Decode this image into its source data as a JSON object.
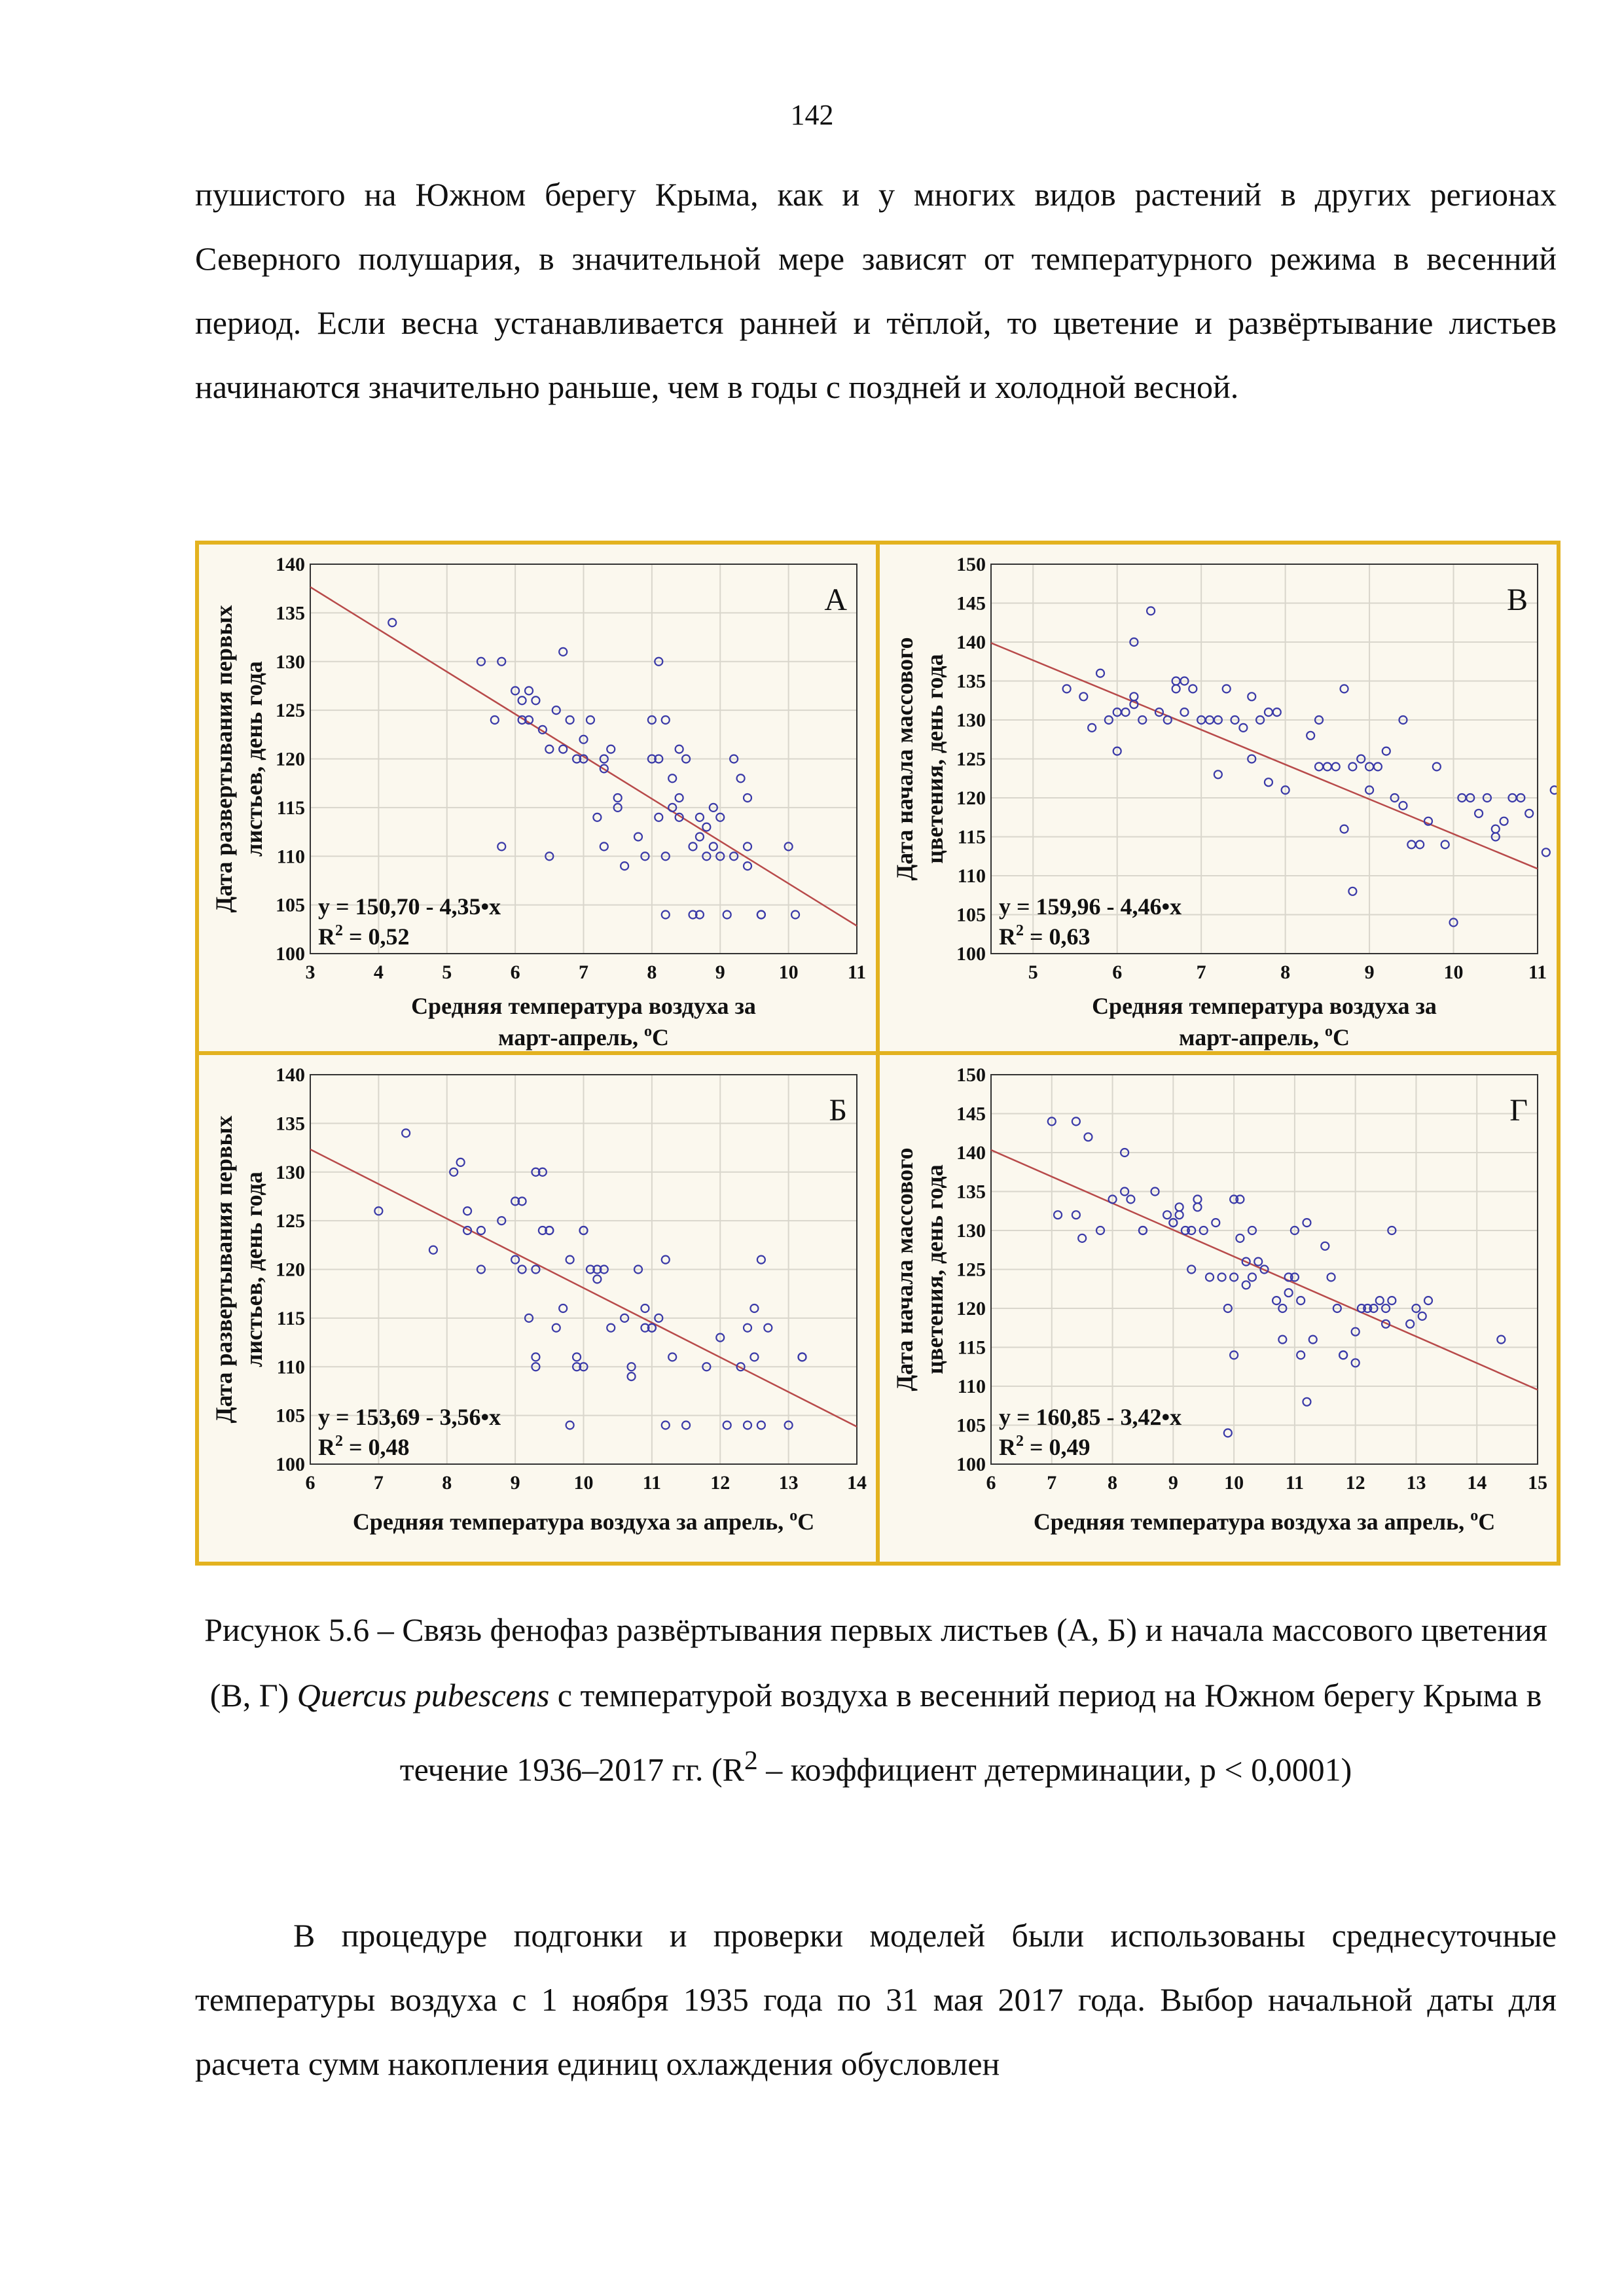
{
  "page_number": "142",
  "paragraph_top": "пушистого на Южном берегу Крыма, как и у многих видов растений в других регионах Северного полушария, в значительной мере зависят от температурного режима в весенний период. Если весна устанавливается ранней и тёплой, то цветение и развёртывание листьев начинаются значительно раньше, чем в годы с поздней и холодной весной.",
  "caption": {
    "part1": "Рисунок 5.6 – Связь фенофаз развёртывания первых листьев (А, Б) и начала массового цветения (В, Г) ",
    "species": "Quercus pubescens",
    "part2": " с температурой воздуха в весенний период на Южном берегу Крыма в течение 1936–2017 гг. (R",
    "sup": "2",
    "part3": " – коэффициент детерминации, p < 0,0001)"
  },
  "paragraph_bottom": "В процедуре подгонки и проверки моделей были использованы среднесуточные температуры воздуха с 1 ноября 1935 года по 31 мая 2017 года. Выбор начальной даты для расчета сумм накопления единиц охлаждения обусловлен",
  "chart_data": [
    {
      "id": "A",
      "type": "scatter",
      "panel_label": "А",
      "xlabel_line1": "Средняя температура воздуха за",
      "xlabel_line2": "март-апрель, ",
      "xlabel_unit_sup": "o",
      "xlabel_unit": "C",
      "ylabel_line1": "Дата развертывания первых",
      "ylabel_line2": "листьев, день года",
      "xlim": [
        3,
        11
      ],
      "ylim": [
        100,
        140
      ],
      "xticks": [
        3,
        4,
        5,
        6,
        7,
        8,
        9,
        10,
        11
      ],
      "yticks": [
        100,
        105,
        110,
        115,
        120,
        125,
        130,
        135,
        140
      ],
      "equation": "y = 150,70 - 4,35•x",
      "r2_label": "R",
      "r2_sup": "2",
      "r2_value": " = 0,52",
      "regression": {
        "intercept": 150.7,
        "slope": -4.35
      },
      "points": [
        [
          4.2,
          134
        ],
        [
          5.5,
          130
        ],
        [
          5.7,
          124
        ],
        [
          5.8,
          111
        ],
        [
          5.8,
          130
        ],
        [
          6.0,
          127
        ],
        [
          6.1,
          124
        ],
        [
          6.1,
          126
        ],
        [
          6.2,
          127
        ],
        [
          6.2,
          124
        ],
        [
          6.3,
          126
        ],
        [
          6.4,
          123
        ],
        [
          6.5,
          121
        ],
        [
          6.5,
          110
        ],
        [
          6.6,
          125
        ],
        [
          6.7,
          131
        ],
        [
          6.7,
          121
        ],
        [
          6.8,
          124
        ],
        [
          6.9,
          120
        ],
        [
          7.0,
          122
        ],
        [
          7.0,
          120
        ],
        [
          7.1,
          124
        ],
        [
          7.2,
          114
        ],
        [
          7.3,
          111
        ],
        [
          7.3,
          119
        ],
        [
          7.3,
          120
        ],
        [
          7.4,
          121
        ],
        [
          7.5,
          116
        ],
        [
          7.5,
          115
        ],
        [
          7.6,
          109
        ],
        [
          7.8,
          112
        ],
        [
          7.9,
          110
        ],
        [
          8.0,
          124
        ],
        [
          8.0,
          120
        ],
        [
          8.1,
          114
        ],
        [
          8.1,
          130
        ],
        [
          8.1,
          120
        ],
        [
          8.2,
          124
        ],
        [
          8.2,
          110
        ],
        [
          8.2,
          104
        ],
        [
          8.3,
          115
        ],
        [
          8.3,
          118
        ],
        [
          8.4,
          116
        ],
        [
          8.4,
          121
        ],
        [
          8.4,
          114
        ],
        [
          8.5,
          120
        ],
        [
          8.6,
          111
        ],
        [
          8.6,
          104
        ],
        [
          8.7,
          104
        ],
        [
          8.7,
          114
        ],
        [
          8.7,
          112
        ],
        [
          8.8,
          110
        ],
        [
          8.8,
          113
        ],
        [
          8.9,
          111
        ],
        [
          8.9,
          115
        ],
        [
          9.0,
          114
        ],
        [
          9.0,
          110
        ],
        [
          9.1,
          104
        ],
        [
          9.2,
          110
        ],
        [
          9.2,
          120
        ],
        [
          9.3,
          118
        ],
        [
          9.4,
          109
        ],
        [
          9.4,
          116
        ],
        [
          9.4,
          111
        ],
        [
          9.6,
          104
        ],
        [
          9.6,
          104
        ],
        [
          10.0,
          111
        ],
        [
          10.1,
          104
        ]
      ]
    },
    {
      "id": "B",
      "type": "scatter",
      "panel_label": "В",
      "xlabel_line1": "Средняя температура воздуха за",
      "xlabel_line2": "март-апрель, ",
      "xlabel_unit_sup": "o",
      "xlabel_unit": "C",
      "ylabel_line1": "Дата начала массового",
      "ylabel_line2": "цветения, день года",
      "xlim": [
        4.5,
        11
      ],
      "ylim": [
        100,
        150
      ],
      "xticks": [
        5,
        6,
        7,
        8,
        9,
        10,
        11
      ],
      "yticks": [
        100,
        105,
        110,
        115,
        120,
        125,
        130,
        135,
        140,
        145,
        150
      ],
      "equation": "y = 159,96 - 4,46•x",
      "r2_label": "R",
      "r2_sup": "2",
      "r2_value": " = 0,63",
      "regression": {
        "intercept": 159.96,
        "slope": -4.46
      },
      "points": [
        [
          5.4,
          134
        ],
        [
          5.6,
          133
        ],
        [
          5.7,
          129
        ],
        [
          5.8,
          136
        ],
        [
          5.9,
          130
        ],
        [
          6.0,
          126
        ],
        [
          6.0,
          131
        ],
        [
          6.1,
          131
        ],
        [
          6.2,
          140
        ],
        [
          6.2,
          132
        ],
        [
          6.2,
          133
        ],
        [
          6.3,
          130
        ],
        [
          6.4,
          144
        ],
        [
          6.5,
          131
        ],
        [
          6.6,
          130
        ],
        [
          6.7,
          135
        ],
        [
          6.7,
          134
        ],
        [
          6.8,
          131
        ],
        [
          6.8,
          135
        ],
        [
          6.9,
          134
        ],
        [
          7.0,
          130
        ],
        [
          7.1,
          130
        ],
        [
          7.2,
          130
        ],
        [
          7.2,
          123
        ],
        [
          7.3,
          134
        ],
        [
          7.4,
          130
        ],
        [
          7.5,
          129
        ],
        [
          7.6,
          133
        ],
        [
          7.6,
          125
        ],
        [
          7.7,
          130
        ],
        [
          7.8,
          131
        ],
        [
          7.8,
          122
        ],
        [
          7.9,
          131
        ],
        [
          8.0,
          121
        ],
        [
          8.3,
          128
        ],
        [
          8.4,
          130
        ],
        [
          8.4,
          124
        ],
        [
          8.5,
          124
        ],
        [
          8.6,
          124
        ],
        [
          8.7,
          134
        ],
        [
          8.7,
          116
        ],
        [
          8.8,
          108
        ],
        [
          8.8,
          124
        ],
        [
          8.9,
          125
        ],
        [
          9.0,
          124
        ],
        [
          9.0,
          121
        ],
        [
          9.1,
          124
        ],
        [
          9.2,
          126
        ],
        [
          9.3,
          120
        ],
        [
          9.4,
          119
        ],
        [
          9.4,
          130
        ],
        [
          9.5,
          114
        ],
        [
          9.6,
          114
        ],
        [
          9.7,
          117
        ],
        [
          9.8,
          124
        ],
        [
          9.9,
          114
        ],
        [
          10.0,
          104
        ],
        [
          10.1,
          120
        ],
        [
          10.2,
          120
        ],
        [
          10.3,
          118
        ],
        [
          10.4,
          120
        ],
        [
          10.5,
          115
        ],
        [
          10.5,
          116
        ],
        [
          10.6,
          117
        ],
        [
          10.7,
          120
        ],
        [
          10.8,
          120
        ],
        [
          10.9,
          118
        ],
        [
          11.1,
          113
        ],
        [
          11.2,
          121
        ],
        [
          11.3,
          114
        ]
      ]
    },
    {
      "id": "C",
      "type": "scatter",
      "panel_label": "Б",
      "xlabel_line1": "Средняя температура воздуха за апрель, ",
      "xlabel_line2": "",
      "xlabel_unit_sup": "o",
      "xlabel_unit": "C",
      "ylabel_line1": "Дата развертывания первых",
      "ylabel_line2": "листьев, день года",
      "xlim": [
        6,
        14
      ],
      "ylim": [
        100,
        140
      ],
      "xticks": [
        6,
        7,
        8,
        9,
        10,
        11,
        12,
        13,
        14
      ],
      "yticks": [
        100,
        105,
        110,
        115,
        120,
        125,
        130,
        135,
        140
      ],
      "equation": "y = 153,69 - 3,56•x",
      "r2_label": "R",
      "r2_sup": "2",
      "r2_value": " = 0,48",
      "regression": {
        "intercept": 153.69,
        "slope": -3.56
      },
      "points": [
        [
          7.0,
          126
        ],
        [
          7.4,
          134
        ],
        [
          7.8,
          122
        ],
        [
          8.1,
          130
        ],
        [
          8.2,
          131
        ],
        [
          8.3,
          126
        ],
        [
          8.3,
          124
        ],
        [
          8.5,
          120
        ],
        [
          8.5,
          124
        ],
        [
          8.8,
          125
        ],
        [
          9.0,
          127
        ],
        [
          9.0,
          121
        ],
        [
          9.1,
          127
        ],
        [
          9.1,
          120
        ],
        [
          9.2,
          115
        ],
        [
          9.3,
          120
        ],
        [
          9.3,
          110
        ],
        [
          9.3,
          111
        ],
        [
          9.3,
          130
        ],
        [
          9.4,
          130
        ],
        [
          9.4,
          124
        ],
        [
          9.5,
          124
        ],
        [
          9.5,
          124
        ],
        [
          9.6,
          114
        ],
        [
          9.7,
          116
        ],
        [
          9.8,
          121
        ],
        [
          9.8,
          104
        ],
        [
          9.9,
          110
        ],
        [
          9.9,
          111
        ],
        [
          10.0,
          124
        ],
        [
          10.0,
          110
        ],
        [
          10.0,
          124
        ],
        [
          10.1,
          120
        ],
        [
          10.2,
          119
        ],
        [
          10.2,
          120
        ],
        [
          10.3,
          120
        ],
        [
          10.4,
          114
        ],
        [
          10.6,
          115
        ],
        [
          10.7,
          110
        ],
        [
          10.7,
          109
        ],
        [
          10.8,
          120
        ],
        [
          10.9,
          116
        ],
        [
          10.9,
          114
        ],
        [
          11.0,
          114
        ],
        [
          11.0,
          114
        ],
        [
          11.1,
          115
        ],
        [
          11.2,
          104
        ],
        [
          11.2,
          121
        ],
        [
          11.3,
          111
        ],
        [
          11.5,
          104
        ],
        [
          11.8,
          110
        ],
        [
          12.0,
          113
        ],
        [
          12.1,
          104
        ],
        [
          12.3,
          110
        ],
        [
          12.4,
          104
        ],
        [
          12.4,
          114
        ],
        [
          12.5,
          111
        ],
        [
          12.5,
          116
        ],
        [
          12.6,
          104
        ],
        [
          12.6,
          121
        ],
        [
          12.7,
          114
        ],
        [
          13.0,
          104
        ],
        [
          13.2,
          111
        ],
        [
          13.2,
          111
        ]
      ]
    },
    {
      "id": "D",
      "type": "scatter",
      "panel_label": "Г",
      "xlabel_line1": "Средняя температура воздуха за апрель, ",
      "xlabel_line2": "",
      "xlabel_unit_sup": "o",
      "xlabel_unit": "C",
      "ylabel_line1": "Дата начала массового",
      "ylabel_line2": "цветения, день года",
      "xlim": [
        6,
        15
      ],
      "ylim": [
        100,
        150
      ],
      "xticks": [
        6,
        7,
        8,
        9,
        10,
        11,
        12,
        13,
        14,
        15
      ],
      "yticks": [
        100,
        105,
        110,
        115,
        120,
        125,
        130,
        135,
        140,
        145,
        150
      ],
      "equation": "y = 160,85 - 3,42•x",
      "r2_label": "R",
      "r2_sup": "2",
      "r2_value": " = 0,49",
      "regression": {
        "intercept": 160.85,
        "slope": -3.42
      },
      "points": [
        [
          7.0,
          144
        ],
        [
          7.1,
          132
        ],
        [
          7.4,
          144
        ],
        [
          7.4,
          132
        ],
        [
          7.5,
          129
        ],
        [
          7.6,
          142
        ],
        [
          7.8,
          130
        ],
        [
          8.0,
          134
        ],
        [
          8.2,
          135
        ],
        [
          8.2,
          140
        ],
        [
          8.3,
          134
        ],
        [
          8.5,
          130
        ],
        [
          8.5,
          130
        ],
        [
          8.7,
          135
        ],
        [
          8.9,
          132
        ],
        [
          9.0,
          131
        ],
        [
          9.0,
          131
        ],
        [
          9.1,
          133
        ],
        [
          9.1,
          132
        ],
        [
          9.2,
          130
        ],
        [
          9.3,
          130
        ],
        [
          9.3,
          125
        ],
        [
          9.4,
          134
        ],
        [
          9.4,
          133
        ],
        [
          9.5,
          130
        ],
        [
          9.6,
          124
        ],
        [
          9.7,
          131
        ],
        [
          9.8,
          124
        ],
        [
          9.9,
          104
        ],
        [
          9.9,
          120
        ],
        [
          10.0,
          134
        ],
        [
          10.0,
          114
        ],
        [
          10.0,
          124
        ],
        [
          10.1,
          134
        ],
        [
          10.1,
          129
        ],
        [
          10.2,
          123
        ],
        [
          10.2,
          126
        ],
        [
          10.3,
          124
        ],
        [
          10.3,
          130
        ],
        [
          10.4,
          126
        ],
        [
          10.5,
          125
        ],
        [
          10.7,
          121
        ],
        [
          10.8,
          120
        ],
        [
          10.8,
          116
        ],
        [
          10.9,
          122
        ],
        [
          10.9,
          124
        ],
        [
          11.0,
          124
        ],
        [
          11.0,
          130
        ],
        [
          11.1,
          114
        ],
        [
          11.1,
          121
        ],
        [
          11.2,
          108
        ],
        [
          11.2,
          131
        ],
        [
          11.3,
          116
        ],
        [
          11.5,
          128
        ],
        [
          11.6,
          124
        ],
        [
          11.7,
          120
        ],
        [
          11.8,
          114
        ],
        [
          11.8,
          114
        ],
        [
          12.0,
          113
        ],
        [
          12.0,
          117
        ],
        [
          12.1,
          120
        ],
        [
          12.2,
          120
        ],
        [
          12.3,
          120
        ],
        [
          12.4,
          121
        ],
        [
          12.5,
          118
        ],
        [
          12.5,
          120
        ],
        [
          12.6,
          121
        ],
        [
          12.6,
          130
        ],
        [
          12.9,
          118
        ],
        [
          13.0,
          120
        ],
        [
          13.1,
          119
        ],
        [
          13.2,
          121
        ],
        [
          14.4,
          116
        ]
      ]
    }
  ]
}
